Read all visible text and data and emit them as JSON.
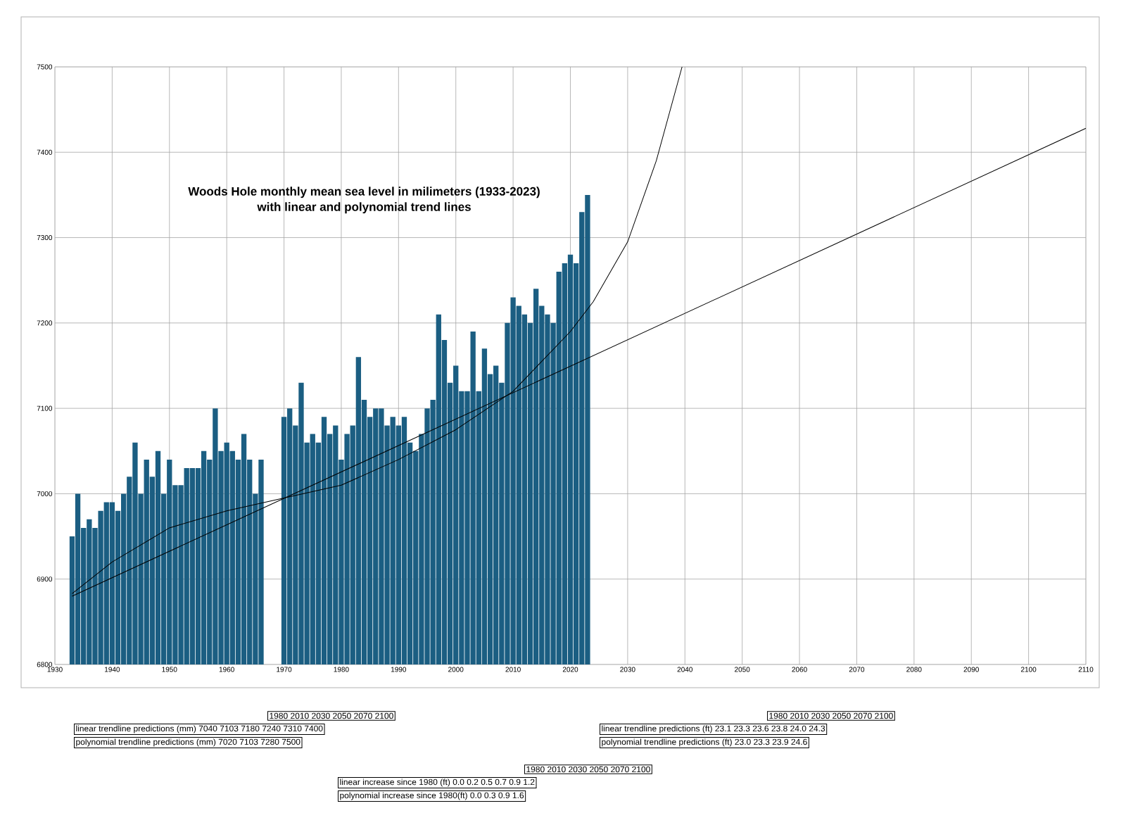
{
  "chart_data": {
    "type": "bar",
    "title": "Woods Hole monthly mean sea level in milimeters (1933-2023)",
    "subtitle": "with linear and polynomial trend lines",
    "xlim": [
      1930,
      2110
    ],
    "ylim": [
      6800,
      7500
    ],
    "xticks": [
      1930,
      1940,
      1950,
      1960,
      1970,
      1980,
      1990,
      2000,
      2010,
      2020,
      2030,
      2040,
      2050,
      2060,
      2070,
      2080,
      2090,
      2100,
      2110
    ],
    "yticks": [
      6800,
      6900,
      7000,
      7100,
      7200,
      7300,
      7400,
      7500
    ],
    "grid": true,
    "series": [
      {
        "color": "#1b5e82",
        "x": [
          1933,
          1934,
          1935,
          1936,
          1937,
          1938,
          1939,
          1940,
          1941,
          1942,
          1943,
          1944,
          1945,
          1946,
          1947,
          1948,
          1949,
          1950,
          1951,
          1952,
          1953,
          1954,
          1955,
          1956,
          1957,
          1958,
          1959,
          1960,
          1961,
          1962,
          1963,
          1964,
          1965,
          1966,
          1967,
          1968,
          1969,
          1970,
          1971,
          1972,
          1973,
          1974,
          1975,
          1976,
          1977,
          1978,
          1979,
          1980,
          1981,
          1982,
          1983,
          1984,
          1985,
          1986,
          1987,
          1988,
          1989,
          1990,
          1991,
          1992,
          1993,
          1994,
          1995,
          1996,
          1997,
          1998,
          1999,
          2000,
          2001,
          2002,
          2003,
          2004,
          2005,
          2006,
          2007,
          2008,
          2009,
          2010,
          2011,
          2012,
          2013,
          2014,
          2015,
          2016,
          2017,
          2018,
          2019,
          2020,
          2021,
          2022,
          2023
        ],
        "values": [
          6950,
          7000,
          6960,
          6970,
          6960,
          6980,
          6990,
          6990,
          6980,
          7000,
          7020,
          7060,
          7000,
          7040,
          7020,
          7050,
          7000,
          7040,
          7010,
          7010,
          7030,
          7030,
          7030,
          7050,
          7040,
          7100,
          7050,
          7060,
          7050,
          7040,
          7070,
          7040,
          7000,
          7040,
          null,
          null,
          null,
          7090,
          7100,
          7080,
          7130,
          7060,
          7070,
          7060,
          7090,
          7070,
          7080,
          7040,
          7070,
          7080,
          7160,
          7110,
          7090,
          7100,
          7100,
          7080,
          7090,
          7080,
          7090,
          7060,
          7050,
          7070,
          7100,
          7110,
          7210,
          7180,
          7130,
          7150,
          7120,
          7120,
          7190,
          7120,
          7170,
          7140,
          7150,
          7130,
          7200,
          7230,
          7220,
          7210,
          7200,
          7240,
          7220,
          7210,
          7200,
          7260,
          7270,
          7280,
          7270,
          7330,
          7350
        ]
      },
      {
        "type": "line",
        "color": "#000000",
        "x": [
          1933,
          2110
        ],
        "values": [
          6880,
          7428
        ]
      },
      {
        "type": "line",
        "color": "#000000",
        "x": [
          1933,
          1940,
          1950,
          1960,
          1970,
          1980,
          1990,
          2000,
          2010,
          2020,
          2024,
          2030,
          2035,
          2039.5
        ],
        "values": [
          6883,
          6920,
          6960,
          6980,
          6995,
          7010,
          7040,
          7075,
          7120,
          7190,
          7225,
          7295,
          7390,
          7500
        ]
      }
    ],
    "annotations": [
      "1980 2010 2030 2050 2070 2100",
      "linear trendline predictions (mm) 7040 7103 7180 7240 7310 7400",
      "polynomial trendline predictions (mm) 7020 7103 7280 7500",
      "1980 2010 2030 2050 2070 2100",
      "linear trendline predictions (ft) 23.1 23.3 23.6 23.8 24.0 24.3",
      "polynomial trendline predictions (ft) 23.0 23.3 23.9 24.6",
      "1980 2010 2030 2050 2070 2100",
      "linear increase since 1980 (ft) 0.0 0.2 0.5 0.7 0.9 1.2",
      "polynomial increase since 1980(ft) 0.0 0.3 0.9 1.6"
    ]
  }
}
